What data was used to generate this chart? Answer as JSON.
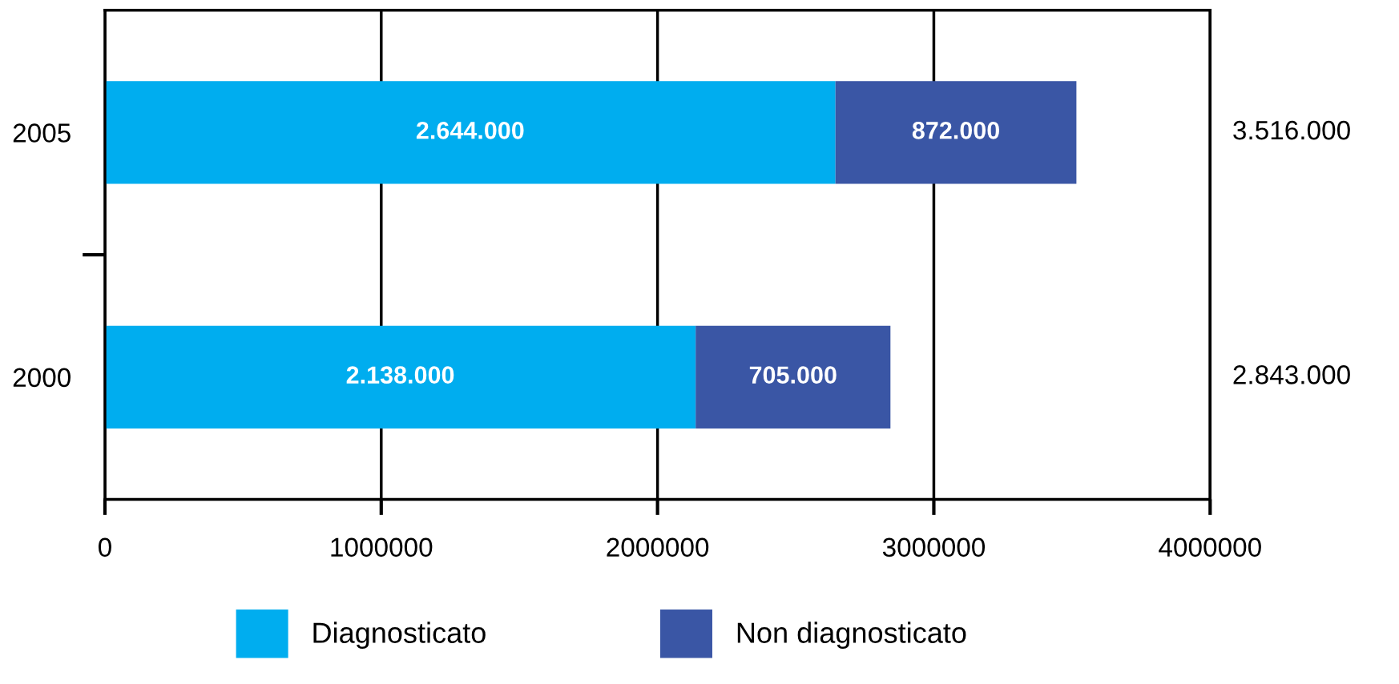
{
  "chart_data": {
    "type": "bar",
    "orientation": "horizontal",
    "stacked": true,
    "categories": [
      "2005",
      "2000"
    ],
    "series": [
      {
        "name": "Diagnosticato",
        "color": "#00adef",
        "values": [
          2644000,
          2138000
        ],
        "value_labels": [
          "2.644.000",
          "2.138.000"
        ]
      },
      {
        "name": "Non diagnosticato",
        "color": "#3a56a5",
        "values": [
          872000,
          705000
        ],
        "value_labels": [
          "872.000",
          "705.000"
        ]
      }
    ],
    "annotations": [
      "3.516.000",
      "2.843.000"
    ],
    "xlim": [
      0,
      4000000
    ],
    "xticks": [
      0,
      1000000,
      2000000,
      3000000,
      4000000
    ],
    "grid": "x",
    "legend": "bottom"
  }
}
